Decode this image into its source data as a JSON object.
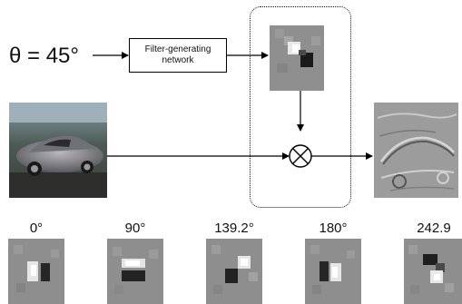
{
  "theta_label": "θ = 45°",
  "network_box_label": "Filter-generating network",
  "angle_labels": [
    "0°",
    "90°",
    "139.2°",
    "180°",
    "242.9"
  ]
}
